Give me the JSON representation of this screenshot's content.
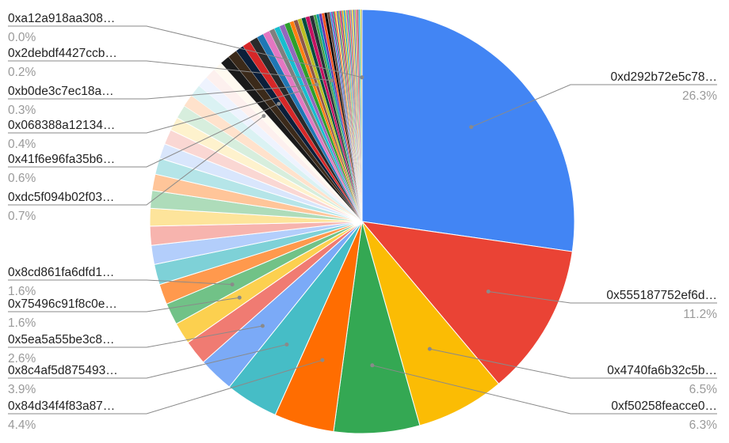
{
  "chart_data": {
    "type": "pie",
    "title": "",
    "slices": [
      {
        "label": "0xd292b72e5c78…",
        "value": 26.3,
        "pct_label": "26.3%",
        "color": "#4285f4"
      },
      {
        "label": "0x555187752ef6d…",
        "value": 11.2,
        "pct_label": "11.2%",
        "color": "#ea4335"
      },
      {
        "label": "0x4740fa6b32c5b…",
        "value": 6.5,
        "pct_label": "6.5%",
        "color": "#fbbc04"
      },
      {
        "label": "0xf50258feacce0…",
        "value": 6.3,
        "pct_label": "6.3%",
        "color": "#34a853"
      },
      {
        "label": "0x84d34f4f83a87…",
        "value": 4.4,
        "pct_label": "4.4%",
        "color": "#ff6d01"
      },
      {
        "label": "0x8c4af5d875493…",
        "value": 3.9,
        "pct_label": "3.9%",
        "color": "#46bdc6"
      },
      {
        "label": "0x5ea5a55be3c8…",
        "value": 2.6,
        "pct_label": "2.6%",
        "color": "#7baaf7"
      },
      {
        "label": "",
        "value": 1.8,
        "color": "#f07b72"
      },
      {
        "label": "0x75496c91f8c0e…",
        "value": 1.6,
        "pct_label": "1.6%",
        "color": "#fcd04f"
      },
      {
        "label": "0x8cd861fa6dfd1…",
        "value": 1.6,
        "pct_label": "1.6%",
        "color": "#71c287"
      },
      {
        "label": "",
        "value": 1.5,
        "color": "#ff994d"
      },
      {
        "label": "",
        "value": 1.5,
        "color": "#7ed1d7"
      },
      {
        "label": "",
        "value": 1.4,
        "color": "#b3cefb"
      },
      {
        "label": "",
        "value": 1.4,
        "color": "#f7b4ae"
      },
      {
        "label": "",
        "value": 1.3,
        "color": "#fde49b"
      },
      {
        "label": "",
        "value": 1.3,
        "color": "#aedcba"
      },
      {
        "label": "",
        "value": 1.2,
        "color": "#ffc599"
      },
      {
        "label": "",
        "value": 1.2,
        "color": "#b5e5e8"
      },
      {
        "label": "",
        "value": 1.1,
        "color": "#d9e6fc"
      },
      {
        "label": "",
        "value": 1.1,
        "color": "#fad7d3"
      },
      {
        "label": "",
        "value": 1.0,
        "color": "#fef2cd"
      },
      {
        "label": "",
        "value": 1.0,
        "color": "#d7eedd"
      },
      {
        "label": "",
        "value": 0.9,
        "color": "#ffe2cc"
      },
      {
        "label": "",
        "value": 0.9,
        "color": "#daf2f3"
      },
      {
        "label": "",
        "value": 0.8,
        "color": "#eef3fe"
      },
      {
        "label": "",
        "value": 0.8,
        "color": "#fdf0ee"
      },
      {
        "label": "0xdc5f094b02f03…",
        "value": 0.7,
        "pct_label": "0.7%",
        "color": "#fffaf0"
      },
      {
        "label": "",
        "value": 0.7,
        "color": "#1a1a1a"
      },
      {
        "label": "",
        "value": 0.7,
        "color": "#3b2a1a"
      },
      {
        "label": "0x41f6e96fa35b6…",
        "value": 0.6,
        "pct_label": "0.6%",
        "color": "#0b1f3a"
      },
      {
        "label": "",
        "value": 0.6,
        "color": "#d62728"
      },
      {
        "label": "",
        "value": 0.6,
        "color": "#2a2a2a"
      },
      {
        "label": "",
        "value": 0.5,
        "color": "#1f77b4"
      },
      {
        "label": "",
        "value": 0.5,
        "color": "#e377c2"
      },
      {
        "label": "0x068388a12134…",
        "value": 0.4,
        "pct_label": "0.4%",
        "color": "#7f7f7f"
      },
      {
        "label": "",
        "value": 0.4,
        "color": "#17becf"
      },
      {
        "label": "",
        "value": 0.4,
        "color": "#9467bd"
      },
      {
        "label": "",
        "value": 0.4,
        "color": "#2ca02c"
      },
      {
        "label": "",
        "value": 0.3,
        "color": "#ff7f0e"
      },
      {
        "label": "0xb0de3c7ec18a…",
        "value": 0.3,
        "pct_label": "0.3%",
        "color": "#8c564b"
      },
      {
        "label": "",
        "value": 0.3,
        "color": "#bcbd22"
      },
      {
        "label": "",
        "value": 0.3,
        "color": "#004d40"
      },
      {
        "label": "",
        "value": 0.3,
        "color": "#c51162"
      },
      {
        "label": "",
        "value": 0.3,
        "color": "#263238"
      },
      {
        "label": "",
        "value": 0.2,
        "color": "#43a047"
      },
      {
        "label": "0x2debdf4427ccb…",
        "value": 0.2,
        "pct_label": "0.2%",
        "color": "#0097a7"
      },
      {
        "label": "",
        "value": 0.2,
        "color": "#5e35b1"
      },
      {
        "label": "",
        "value": 0.2,
        "color": "#f4511e"
      },
      {
        "label": "",
        "value": 0.2,
        "color": "#000000"
      },
      {
        "label": "",
        "value": 0.2,
        "color": "#6d4c41"
      },
      {
        "label": "",
        "value": 0.1,
        "color": "#1e88e5"
      },
      {
        "label": "",
        "value": 0.1,
        "color": "#8e24aa"
      },
      {
        "label": "",
        "value": 0.1,
        "color": "#00897b"
      },
      {
        "label": "",
        "value": 0.1,
        "color": "#e53935"
      },
      {
        "label": "",
        "value": 0.1,
        "color": "#fdd835"
      },
      {
        "label": "",
        "value": 0.1,
        "color": "#3949ab"
      },
      {
        "label": "",
        "value": 0.1,
        "color": "#7cb342"
      },
      {
        "label": "",
        "value": 0.1,
        "color": "#d81b60"
      },
      {
        "label": "",
        "value": 0.1,
        "color": "#546e7a"
      },
      {
        "label": "",
        "value": 0.1,
        "color": "#ffb300"
      },
      {
        "label": "",
        "value": 0.1,
        "color": "#039be5"
      },
      {
        "label": "",
        "value": 0.1,
        "color": "#c0ca33"
      },
      {
        "label": "",
        "value": 0.1,
        "color": "#ab47bc"
      },
      {
        "label": "",
        "value": 0.1,
        "color": "#26a69a"
      },
      {
        "label": "",
        "value": 0.1,
        "color": "#ef5350"
      },
      {
        "label": "",
        "value": 0.1,
        "color": "#78909c"
      },
      {
        "label": "",
        "value": 0.1,
        "color": "#ffca28"
      },
      {
        "label": "",
        "value": 0.1,
        "color": "#5c6bc0"
      },
      {
        "label": "",
        "value": 0.1,
        "color": "#9ccc65"
      },
      {
        "label": "",
        "value": 0.1,
        "color": "#ec407a"
      },
      {
        "label": "",
        "value": 0.1,
        "color": "#8d6e63"
      },
      {
        "label": "",
        "value": 0.1,
        "color": "#29b6f6"
      },
      {
        "label": "",
        "value": 0.1,
        "color": "#d4e157"
      },
      {
        "label": "0xa12a918aa308…",
        "value": 0.05,
        "pct_label": "0.0%",
        "color": "#a1887f"
      }
    ],
    "legend": "none",
    "label_lines": true
  }
}
